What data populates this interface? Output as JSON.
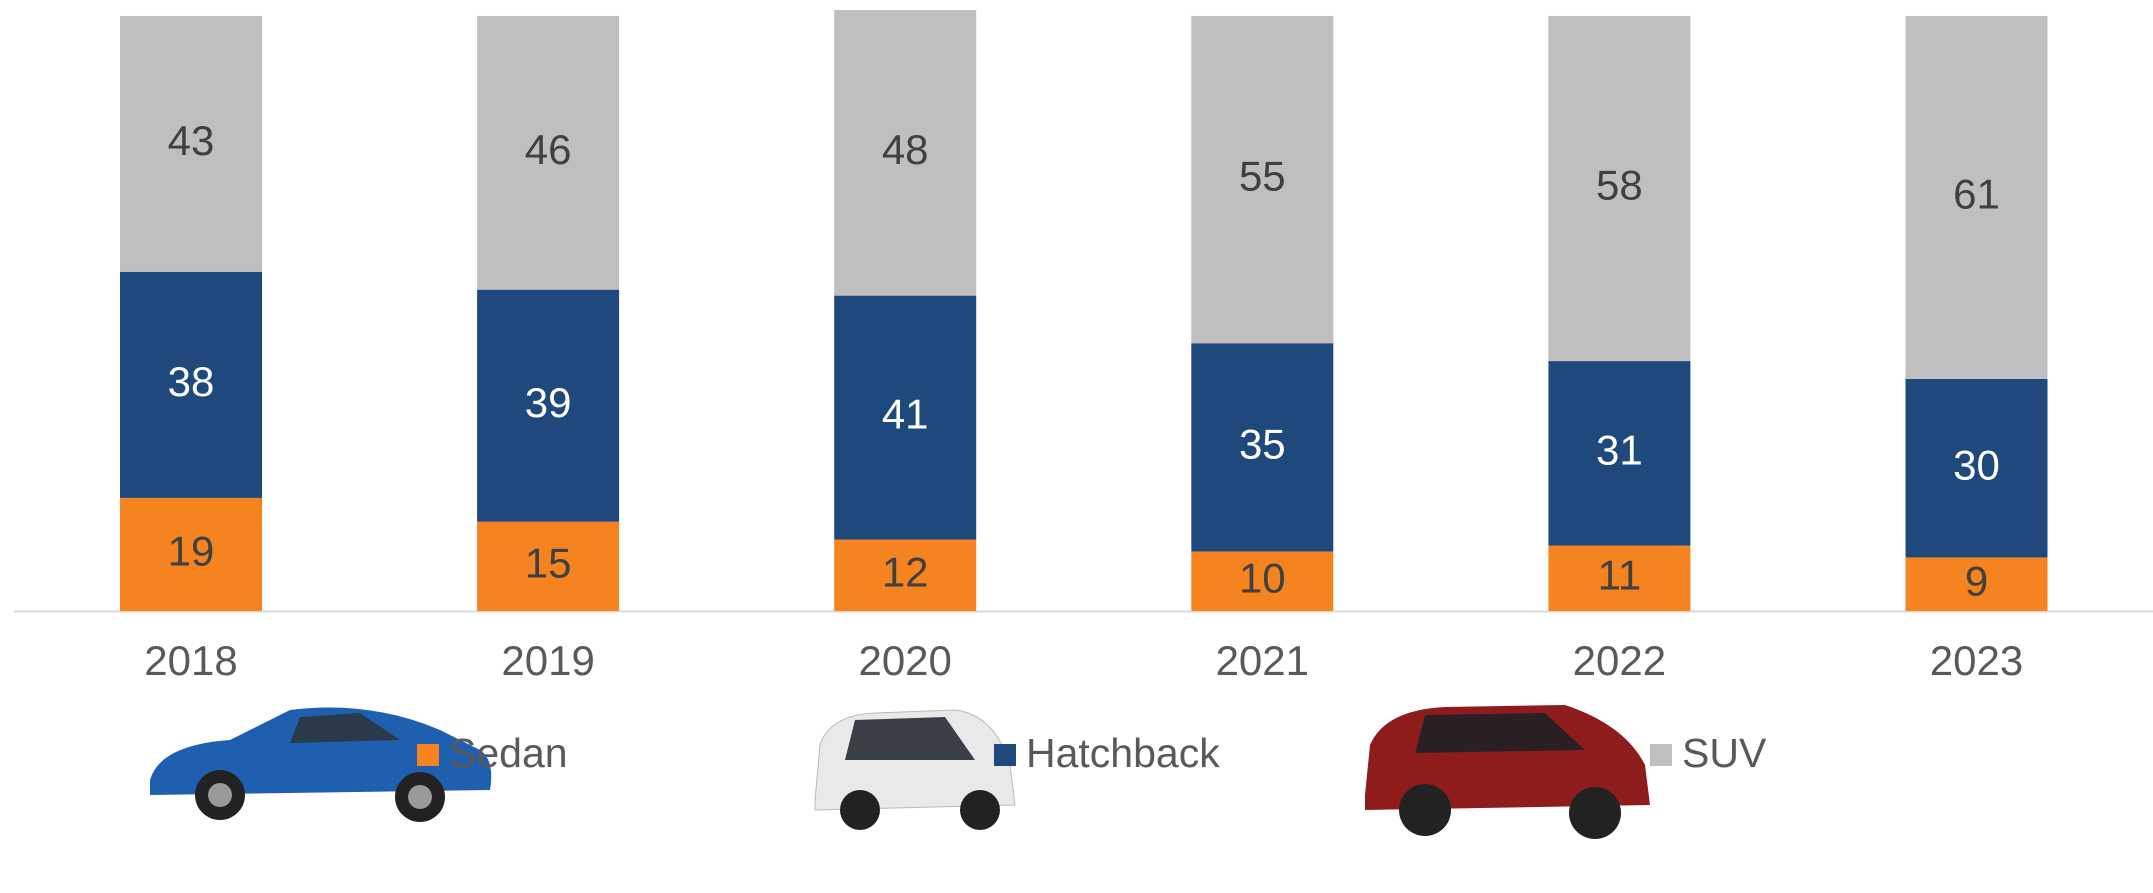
{
  "chart_data": {
    "type": "stacked-bar",
    "categories": [
      "2018",
      "2019",
      "2020",
      "2021",
      "2022",
      "2023"
    ],
    "series": [
      {
        "name": "Sedan",
        "color": "#f58420",
        "values": [
          19,
          15,
          12,
          10,
          11,
          9
        ]
      },
      {
        "name": "Hatchback",
        "color": "#1f497d",
        "values": [
          38,
          39,
          41,
          35,
          31,
          30
        ]
      },
      {
        "name": "SUV",
        "color": "#bfbfbf",
        "values": [
          43,
          46,
          48,
          55,
          58,
          61
        ]
      }
    ],
    "legend": "bottom"
  }
}
